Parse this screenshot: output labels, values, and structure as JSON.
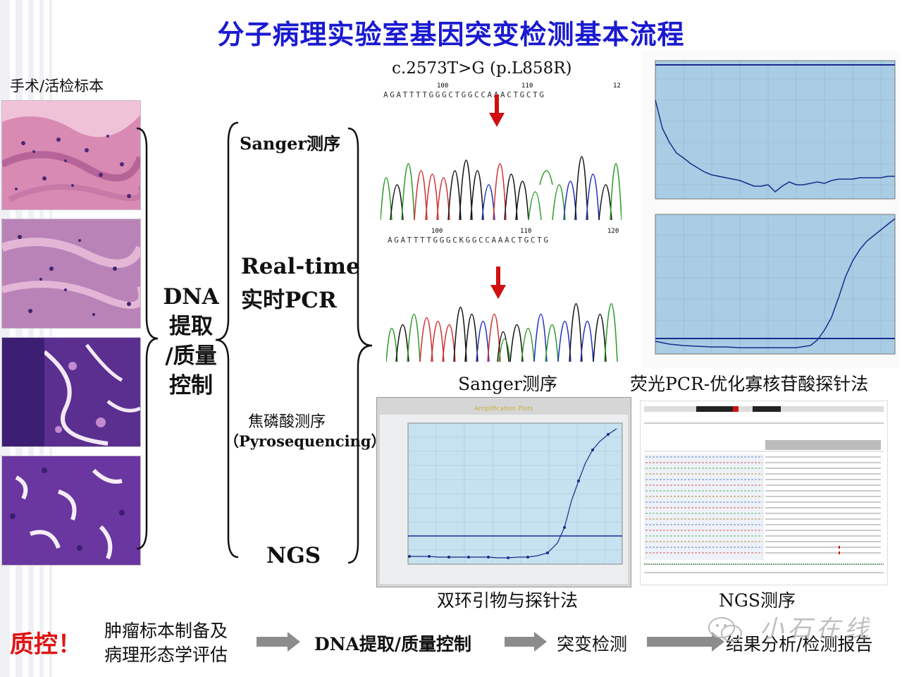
{
  "title": "分子病理实验室基因突变检测基本流程",
  "specimen_label": "手术/活检标本",
  "dna_step": [
    "DNA",
    "提取",
    "/质量",
    "控制"
  ],
  "methods": {
    "sanger": "Sanger测序",
    "realtime_1": "Real-time",
    "realtime_2": "实时PCR",
    "pyro_1": "焦磷酸测序",
    "pyro_2": "（Pyrosequencing）",
    "ngs": "NGS"
  },
  "mutation_label": "c.2573T>G (p.L858R)",
  "sanger_ticks_top": [
    "100",
    "110",
    "12"
  ],
  "sanger_ticks_bottom": [
    "100",
    "110",
    "120"
  ],
  "sanger_seq_top": "AGATTTTGGGCTGGCCAAACTGCTG",
  "sanger_seq_bottom": "AGATTTTGGGCKGGCCAAACTGCTG",
  "captions": {
    "sanger": "Sanger测序",
    "taqman": "荧光PCR-优化寡核苷酸探针法",
    "scorpion": "双环引物与探针法",
    "ngs": "NGS测序"
  },
  "amp_plot_title": "Amplification Plots",
  "qc": {
    "label": "质控！",
    "steps": [
      "肿瘤标本制备及",
      "病理形态学评估",
      "DNA提取/质量控制",
      "突变检测",
      "结果分析/检测报告"
    ]
  },
  "watermark": "小石在线",
  "colors": {
    "title": "#1a1ad0",
    "qc": "#e01414",
    "arrow": "#d01010",
    "plot_bg": "#a9cde4",
    "curve": "#1a2a8a",
    "flow_arrow": "#8c8c8c"
  }
}
